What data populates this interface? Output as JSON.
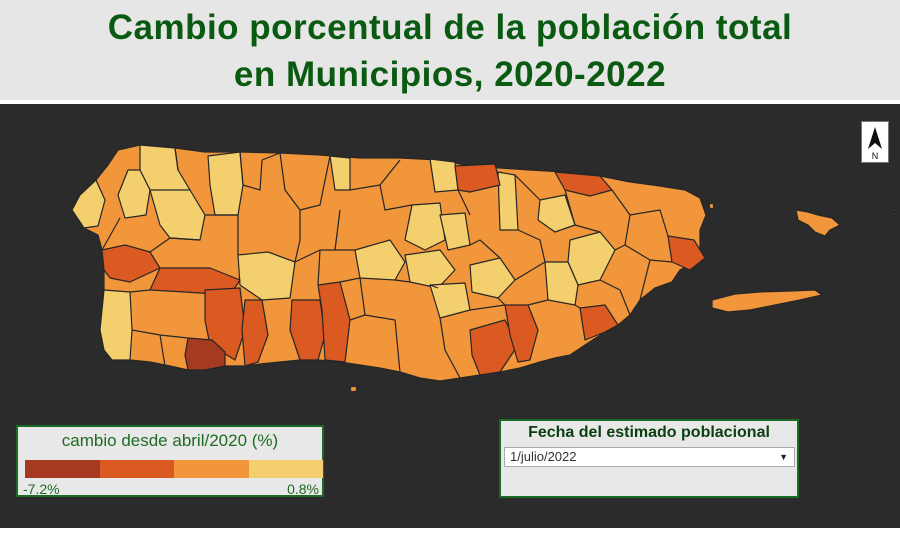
{
  "title": {
    "line1": "Cambio porcentual de la población total",
    "line2": "en Municipios, 2020-2022"
  },
  "north_arrow": {
    "label": "N"
  },
  "legend": {
    "title": "cambio desde abril/2020 (%)",
    "min_label": "-7.2%",
    "max_label": "0.8%",
    "colors": [
      "#a63a21",
      "#db5a22",
      "#f1963b",
      "#f3d06d"
    ]
  },
  "date_filter": {
    "title": "Fecha del estimado poblacional",
    "selected": "1/julio/2022"
  },
  "map": {
    "background": "#2b2b2b",
    "border_color": "#222222"
  }
}
